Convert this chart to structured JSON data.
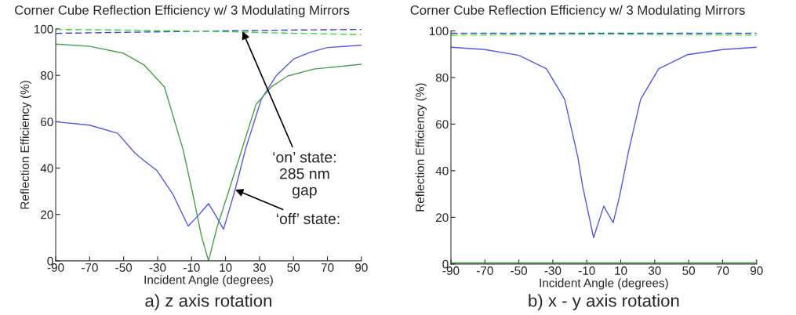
{
  "chart_data": [
    {
      "type": "line",
      "title": "Corner Cube Reflection Efficiency w/ 3 Modulating Mirrors",
      "xlabel": "Incident Angle (degrees)",
      "ylabel": "Reflection Efficiency (%)",
      "xlim": [
        -90,
        90
      ],
      "ylim": [
        0,
        100
      ],
      "xticks": [
        -90,
        -70,
        -50,
        -30,
        -10,
        10,
        30,
        50,
        70,
        90
      ],
      "yticks": [
        0,
        20,
        40,
        60,
        80,
        100
      ],
      "grid": false,
      "legend": false,
      "series": [
        {
          "color": "#3344dd",
          "line_style": "dashed",
          "x": [
            -90,
            -45,
            0,
            45,
            90
          ],
          "values": [
            98.1,
            98.6,
            99.1,
            99.5,
            99.8
          ]
        },
        {
          "color": "#33dd33",
          "line_style": "dashed",
          "x": [
            -90,
            -45,
            0,
            45,
            90
          ],
          "values": [
            99.8,
            99.5,
            99,
            98.2,
            97.6
          ]
        },
        {
          "color": "#5555ee",
          "line_style": "solid",
          "x": [
            -90,
            -70,
            -53.5,
            -44,
            -41,
            -30.5,
            -21,
            -12,
            -6,
            0,
            5,
            8.8,
            15.7,
            21.7,
            31,
            40,
            50,
            60,
            70,
            90
          ],
          "values": [
            60,
            58.5,
            55,
            47,
            45,
            39,
            28.7,
            15,
            19.6,
            24.7,
            18.6,
            13.6,
            30.7,
            48,
            69.6,
            80,
            87,
            90,
            92,
            93
          ]
        },
        {
          "color": "#44a044",
          "line_style": "solid",
          "x": [
            -90,
            -70,
            -50,
            -38,
            -26,
            -15,
            -9,
            -4.3,
            0,
            5,
            11,
            19,
            28,
            37,
            46.6,
            62,
            90
          ],
          "values": [
            93.5,
            92.5,
            89.5,
            84.5,
            75,
            48,
            28,
            11,
            0,
            14.5,
            28,
            46.6,
            67.5,
            75,
            79.7,
            82.7,
            84.8
          ]
        }
      ],
      "annotations": [
        {
          "text": "‘on’ state:\n285 nm\ngap",
          "x": 20,
          "y": 99
        },
        {
          "text": "‘off’ state:",
          "x": 15.7,
          "y": 30.7
        },
        "a) z axis rotation"
      ]
    },
    {
      "type": "line",
      "title": "Corner Cube Reflection Efficiency w/ 3 Modulating Mirrors",
      "xlabel": "Incident Angle (degrees)",
      "ylabel": "Reflection Efficiency (%)",
      "xlim": [
        -90,
        90
      ],
      "ylim": [
        0,
        100
      ],
      "xticks": [
        -90,
        -70,
        -50,
        -30,
        -10,
        10,
        30,
        50,
        70,
        90
      ],
      "yticks": [
        0,
        20,
        40,
        60,
        80,
        100
      ],
      "grid": false,
      "legend": false,
      "series": [
        {
          "color": "#3344dd",
          "line_style": "dashed",
          "x": [
            -90,
            0,
            90
          ],
          "values": [
            99,
            99,
            99
          ]
        },
        {
          "color": "#33dd33",
          "line_style": "dashed",
          "x": [
            -90,
            0,
            90
          ],
          "values": [
            98.2,
            98.6,
            98.2
          ]
        },
        {
          "color": "#5555ee",
          "line_style": "solid",
          "x": [
            -90,
            -70,
            -50,
            -33.7,
            -23,
            -15.3,
            -12.5,
            -6,
            0,
            5.5,
            9.3,
            14.8,
            21.7,
            32.3,
            49.4,
            70,
            90
          ],
          "values": [
            93,
            92,
            89.5,
            83.7,
            70.6,
            46,
            33.5,
            11.3,
            24.8,
            17.7,
            29,
            49,
            70.6,
            83.7,
            89.8,
            92,
            93
          ]
        },
        {
          "color": "#44a044",
          "line_style": "solid",
          "x": [
            -90,
            0,
            90
          ],
          "values": [
            0.5,
            0.5,
            0.5
          ]
        }
      ],
      "annotations": [
        "b) x - y axis rotation"
      ]
    }
  ]
}
